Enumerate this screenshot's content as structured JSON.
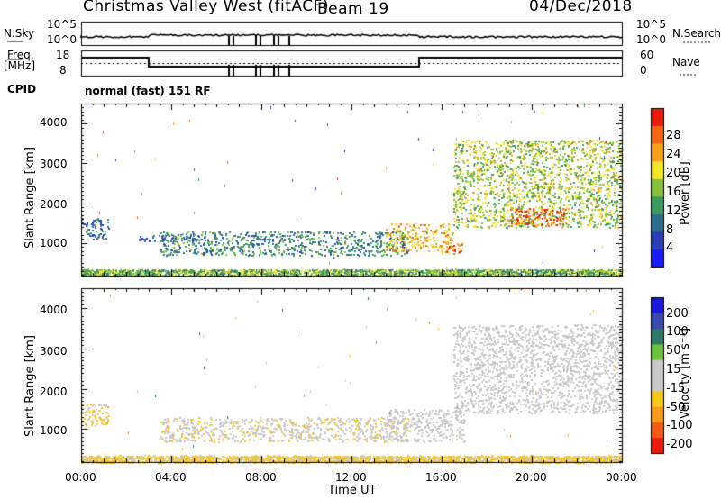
{
  "header": {
    "station": "Christmas Valley West (fitACF)",
    "beam": "Beam 19",
    "date": "04/Dec/2018"
  },
  "noise_panel": {
    "left_label": "N.Sky",
    "right_label": "N.Search",
    "ticks_left": [
      "10^5",
      "10^0"
    ],
    "ticks_right": [
      "10^5",
      "10^0"
    ]
  },
  "freq_panel": {
    "left_label_line1": "Freq.",
    "left_label_line2": "[MHz]",
    "right_label": "Nave",
    "ticks_left": [
      "18",
      "8"
    ],
    "ticks_right": [
      "60",
      "0"
    ]
  },
  "cpid": {
    "label": "CPID",
    "value": "normal (fast) 151 RF"
  },
  "colors": {
    "power_scale": [
      "#1a1aff",
      "#2a3fb8",
      "#2e6d8e",
      "#3c9a60",
      "#88c040",
      "#f2e52a",
      "#f7a01e",
      "#f46615",
      "#e81d0e"
    ],
    "velocity_scale": [
      "#1a1adb",
      "#3a4ab0",
      "#2e7a66",
      "#6cc040",
      "#c8c8c8",
      "#c8c8c8",
      "#f7c81e",
      "#f79a1e",
      "#f45a15",
      "#e81d0e"
    ]
  },
  "chart_data": [
    {
      "type": "heatmap",
      "title": "Power",
      "xlabel": "",
      "ylabel": "Slant Range [km]",
      "xlim": [
        "00:00",
        "24:00"
      ],
      "ylim": [
        180,
        4500
      ],
      "y_ticks": [
        "1000",
        "2000",
        "3000",
        "4000"
      ],
      "colorbar": {
        "label": "Power [dB]",
        "ticks": [
          "4",
          "8",
          "12",
          "16",
          "20",
          "24",
          "28"
        ],
        "range": [
          0,
          30
        ]
      },
      "regions": [
        {
          "time_start": 0.0,
          "time_end": 24.0,
          "range_start": 180,
          "range_end": 350,
          "value": 14
        },
        {
          "time_start": 0.0,
          "time_end": 1.2,
          "range_start": 1100,
          "range_end": 1650,
          "value": 8
        },
        {
          "time_start": 2.5,
          "time_end": 5.0,
          "range_start": 1050,
          "range_end": 1200,
          "value": 6
        },
        {
          "time_start": 3.5,
          "time_end": 14.5,
          "range_start": 700,
          "range_end": 1300,
          "value": 10
        },
        {
          "time_start": 13.5,
          "time_end": 16.5,
          "range_start": 800,
          "range_end": 1500,
          "value": 20
        },
        {
          "time_start": 16.0,
          "time_end": 17.0,
          "range_start": 700,
          "range_end": 1000,
          "value": 24
        },
        {
          "time_start": 16.5,
          "time_end": 24.0,
          "range_start": 1400,
          "range_end": 3600,
          "value": 16
        },
        {
          "time_start": 19.0,
          "time_end": 21.5,
          "range_start": 1450,
          "range_end": 1900,
          "value": 26
        }
      ]
    },
    {
      "type": "heatmap",
      "title": "Velocity",
      "xlabel": "Time UT",
      "ylabel": "Slant Range [km]",
      "xlim": [
        "00:00",
        "24:00"
      ],
      "ylim": [
        180,
        4500
      ],
      "x_ticks": [
        "00:00",
        "04:00",
        "08:00",
        "12:00",
        "16:00",
        "20:00",
        "00:00"
      ],
      "y_ticks": [
        "1000",
        "2000",
        "3000",
        "4000"
      ],
      "colorbar": {
        "label": "Velocity [m s⁻¹]",
        "ticks": [
          "200",
          "100",
          "50",
          "15",
          "-15",
          "-50",
          "-100",
          "-200"
        ],
        "range": [
          -250,
          250
        ]
      },
      "regions": [
        {
          "time_start": 0.0,
          "time_end": 24.0,
          "range_start": 180,
          "range_end": 350,
          "value": -60
        },
        {
          "time_start": 0.0,
          "time_end": 1.2,
          "range_start": 1100,
          "range_end": 1650,
          "value": -70
        },
        {
          "time_start": 3.5,
          "time_end": 14.5,
          "range_start": 700,
          "range_end": 1300,
          "value": -30
        },
        {
          "time_start": 13.5,
          "time_end": 17.0,
          "range_start": 700,
          "range_end": 1500,
          "value": 0
        },
        {
          "time_start": 16.5,
          "time_end": 24.0,
          "range_start": 1400,
          "range_end": 3600,
          "value": 0
        }
      ]
    }
  ]
}
